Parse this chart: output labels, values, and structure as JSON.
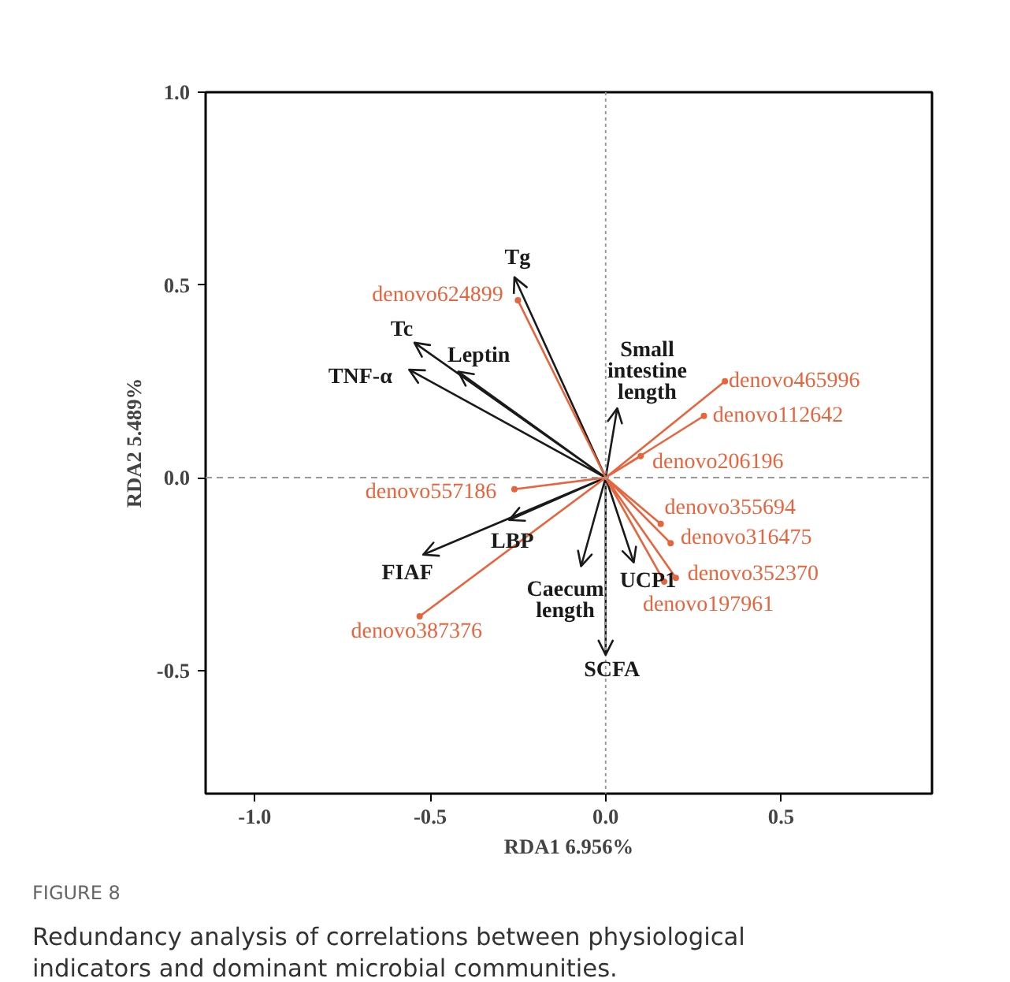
{
  "chart_data": {
    "type": "line",
    "xlabel": "RDA1 6.956%",
    "ylabel": "RDA2 5.489%",
    "xlim": [
      -1.14,
      0.93
    ],
    "ylim": [
      -0.82,
      1.0
    ],
    "xticks": [
      {
        "value": -1.0,
        "label": "-1.0"
      },
      {
        "value": -0.5,
        "label": "-0.5"
      },
      {
        "value": 0.0,
        "label": "0.0"
      },
      {
        "value": 0.5,
        "label": "0.5"
      }
    ],
    "yticks": [
      {
        "value": -0.5,
        "label": "-0.5"
      },
      {
        "value": 0.0,
        "label": "0.0"
      },
      {
        "value": 0.5,
        "label": "0.5"
      },
      {
        "value": 1.0,
        "label": "1.0"
      }
    ],
    "grid": false,
    "ref_lines": [
      {
        "axis": "x",
        "value": 0,
        "color": "#999999",
        "line_style": "dotted"
      },
      {
        "axis": "y",
        "value": 0,
        "color": "#999999",
        "line_style": "dashed"
      }
    ],
    "series": [
      {
        "color": "#1a1a1a",
        "marker": "none",
        "x": [
          0,
          -0.26,
          null,
          0,
          -0.545,
          null,
          0,
          -0.42,
          null,
          0,
          -0.56,
          null,
          0,
          0.033,
          null,
          0,
          -0.275,
          null,
          0,
          -0.52,
          null,
          0,
          -0.07,
          null,
          0,
          0.08,
          null,
          0,
          0.0
        ],
        "values": [
          0,
          0.52,
          null,
          0,
          0.35,
          null,
          0,
          0.275,
          null,
          0,
          0.28,
          null,
          0,
          0.18,
          null,
          0,
          -0.11,
          null,
          0,
          -0.2,
          null,
          0,
          -0.23,
          null,
          0,
          -0.22,
          null,
          0,
          -0.46
        ]
      },
      {
        "color": "#e8643c",
        "marker": "circle",
        "x": [
          0,
          -0.25,
          null,
          0,
          0.34,
          null,
          0,
          0.28,
          null,
          0,
          0.1,
          null,
          0,
          -0.26,
          null,
          0,
          0.157,
          null,
          0,
          0.185,
          null,
          0,
          0.2,
          null,
          0,
          0.167,
          null,
          0,
          -0.53
        ],
        "values": [
          0,
          0.46,
          null,
          0,
          0.25,
          null,
          0,
          0.16,
          null,
          0,
          0.056,
          null,
          0,
          -0.03,
          null,
          0,
          -0.12,
          null,
          0,
          -0.17,
          null,
          0,
          -0.26,
          null,
          0,
          -0.27,
          null,
          0,
          -0.36
        ]
      }
    ],
    "annotations": [
      {
        "text": "Tg",
        "x": -0.26,
        "y": 0.52
      },
      {
        "text": "Tc",
        "x": -0.545,
        "y": 0.35
      },
      {
        "text": "Leptin",
        "x": -0.42,
        "y": 0.275
      },
      {
        "text": "TNF-α",
        "x": -0.56,
        "y": 0.28
      },
      {
        "text": "Small\nintestine\nlength",
        "x": 0.033,
        "y": 0.18
      },
      {
        "text": "LBP",
        "x": -0.275,
        "y": -0.11
      },
      {
        "text": "FIAF",
        "x": -0.52,
        "y": -0.2
      },
      {
        "text": "Caecum\nlength",
        "x": -0.07,
        "y": -0.23
      },
      {
        "text": "UCP1",
        "x": 0.08,
        "y": -0.22
      },
      {
        "text": "SCFA",
        "x": 0.0,
        "y": -0.46
      },
      {
        "text": "denovo624899",
        "x": -0.25,
        "y": 0.46
      },
      {
        "text": "denovo465996",
        "x": 0.34,
        "y": 0.25
      },
      {
        "text": "denovo112642",
        "x": 0.28,
        "y": 0.16
      },
      {
        "text": "denovo206196",
        "x": 0.1,
        "y": 0.056
      },
      {
        "text": "denovo557186",
        "x": -0.26,
        "y": -0.03
      },
      {
        "text": "denovo355694",
        "x": 0.157,
        "y": -0.12
      },
      {
        "text": "denovo316475",
        "x": 0.185,
        "y": -0.17
      },
      {
        "text": "denovo352370",
        "x": 0.2,
        "y": -0.26
      },
      {
        "text": "denovo197961",
        "x": 0.167,
        "y": -0.27
      },
      {
        "text": "denovo387376",
        "x": -0.53,
        "y": -0.36
      },
      "FIGURE 8",
      "Redundancy analysis of correlations between physiological indicators and dominant microbial communities."
    ]
  }
}
